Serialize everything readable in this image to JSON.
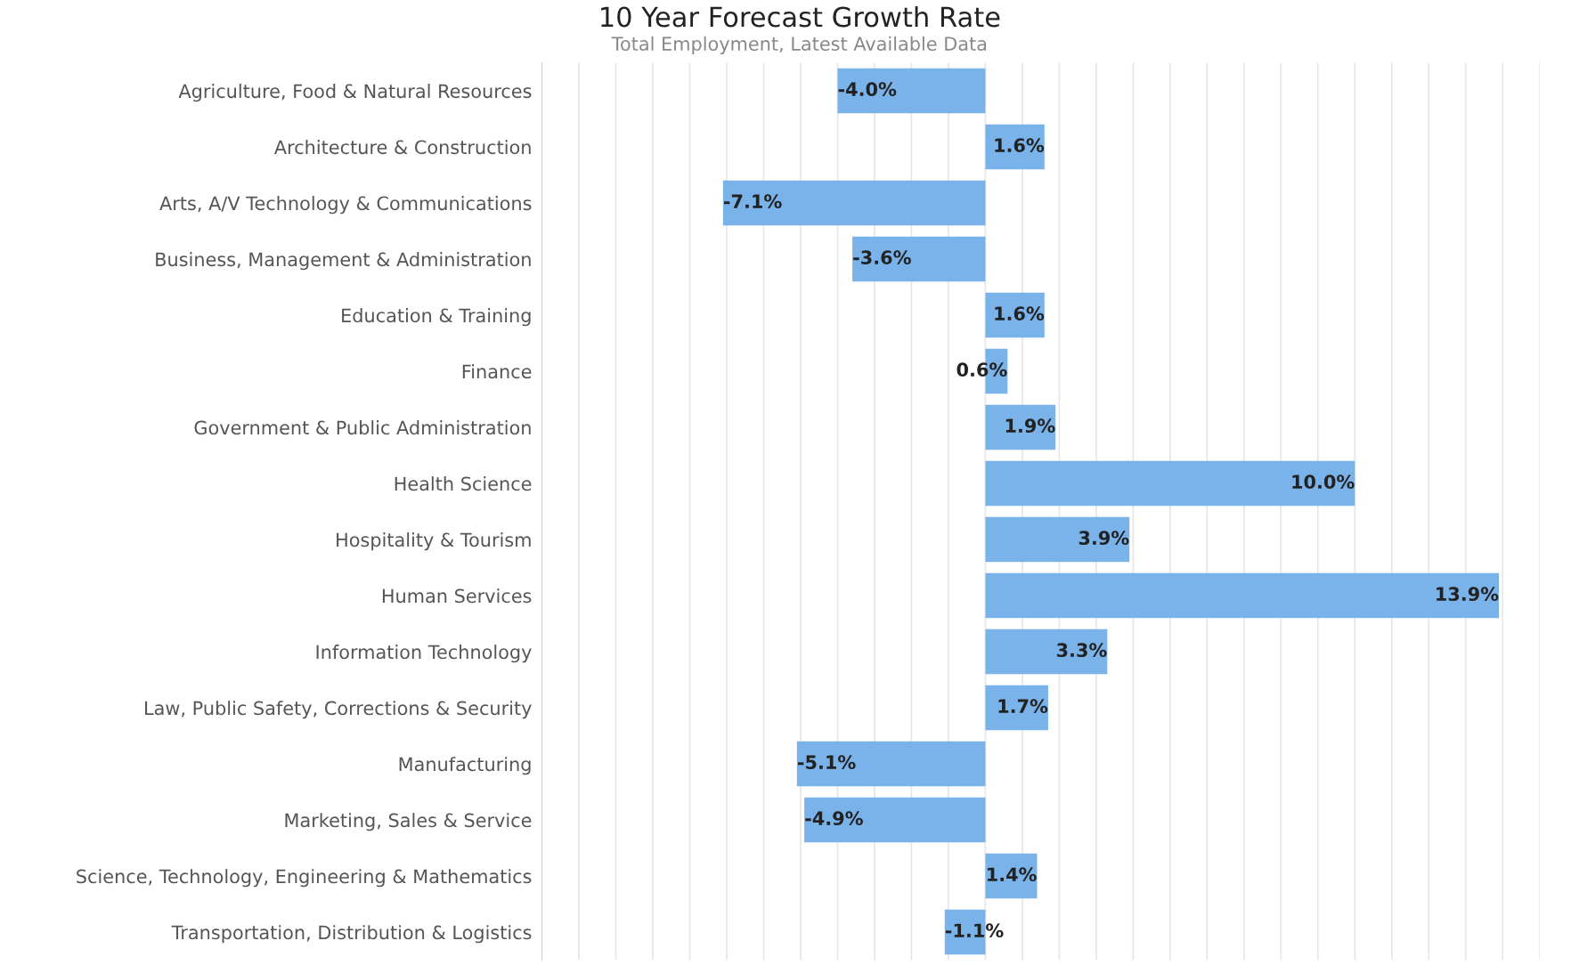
{
  "chart_data": {
    "type": "bar",
    "orientation": "horizontal",
    "title": "10 Year Forecast Growth Rate",
    "subtitle": "Total Employment, Latest Available Data",
    "categories": [
      "Agriculture, Food & Natural Resources",
      "Architecture & Construction",
      "Arts, A/V Technology & Communications",
      "Business, Management & Administration",
      "Education & Training",
      "Finance",
      "Government & Public Administration",
      "Health Science",
      "Hospitality & Tourism",
      "Human Services",
      "Information Technology",
      "Law, Public Safety, Corrections & Security",
      "Manufacturing",
      "Marketing, Sales & Service",
      "Science, Technology, Engineering & Mathematics",
      "Transportation, Distribution & Logistics"
    ],
    "values": [
      -4.0,
      1.6,
      -7.1,
      -3.6,
      1.6,
      0.6,
      1.9,
      10.0,
      3.9,
      13.9,
      3.3,
      1.7,
      -5.1,
      -4.9,
      1.4,
      -1.1
    ],
    "value_labels": [
      "-4.0%",
      "1.6%",
      "-7.1%",
      "-3.6%",
      "1.6%",
      "0.6%",
      "1.9%",
      "10.0%",
      "3.9%",
      "13.9%",
      "3.3%",
      "1.7%",
      "-5.1%",
      "-4.9%",
      "1.4%",
      "-1.1%"
    ],
    "color": "#7ab3ea",
    "xlim": [
      -12,
      15
    ],
    "xticks": [
      {
        "value": -11,
        "label": null
      },
      {
        "value": -10,
        "label": null
      },
      {
        "value": -9,
        "label": null
      },
      {
        "value": -8,
        "label": null
      },
      {
        "value": -7,
        "label": null
      },
      {
        "value": -6,
        "label": null
      },
      {
        "value": -5,
        "label": null
      },
      {
        "value": -4,
        "label": null
      },
      {
        "value": -3,
        "label": null
      },
      {
        "value": -2,
        "label": null
      },
      {
        "value": -1,
        "label": null
      },
      {
        "value": 0,
        "label": null
      },
      {
        "value": 1,
        "label": null
      },
      {
        "value": 2,
        "label": null
      },
      {
        "value": 3,
        "label": null
      },
      {
        "value": 4,
        "label": null
      },
      {
        "value": 5,
        "label": null
      },
      {
        "value": 6,
        "label": null
      },
      {
        "value": 7,
        "label": null
      },
      {
        "value": 8,
        "label": null
      },
      {
        "value": 9,
        "label": null
      },
      {
        "value": 10,
        "label": null
      },
      {
        "value": 11,
        "label": null
      },
      {
        "value": 12,
        "label": null
      },
      {
        "value": 13,
        "label": null
      },
      {
        "value": 14,
        "label": null
      },
      {
        "value": 15,
        "label": null
      }
    ],
    "grid": "x",
    "tick_labels": "y",
    "legend": false
  }
}
